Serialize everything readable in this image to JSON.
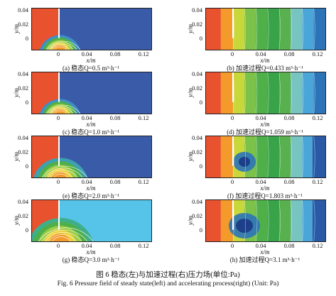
{
  "axes": {
    "ylabel": "y/m",
    "xlabel": "x/m",
    "yticks": [
      "0.04",
      "0.02",
      "0"
    ],
    "xticks": [
      "0",
      "0.04",
      "0.08",
      "0.12"
    ]
  },
  "panels": [
    {
      "id": "a",
      "caption": "(a) 稳态Q=0.5 m³·h⁻¹",
      "variant": "steady-low"
    },
    {
      "id": "b",
      "caption": "(b) 加速过程Q=0.433 m³·h⁻¹",
      "variant": "accel-bands"
    },
    {
      "id": "c",
      "caption": "(c) 稳态Q=1.0 m³·h⁻¹",
      "variant": "steady-low"
    },
    {
      "id": "d",
      "caption": "(d) 加速过程Q=1.059 m³·h⁻¹",
      "variant": "accel-bands"
    },
    {
      "id": "e",
      "caption": "(e) 稳态Q=2.0 m³·h⁻¹",
      "variant": "steady-mid"
    },
    {
      "id": "f",
      "caption": "(f) 加速过程Q=1.803 m³·h⁻¹",
      "variant": "accel-jet"
    },
    {
      "id": "g",
      "caption": "(g) 稳态Q=3.0 m³·h⁻¹",
      "variant": "steady-high"
    },
    {
      "id": "h",
      "caption": "(h) 加速过程Q=3.1 m³·h⁻¹",
      "variant": "accel-jet-strong"
    }
  ],
  "figure": {
    "title": "图 6   稳态(左)与加速过程(右)压力场(单位:Pa)",
    "subtitle": "Fig. 6   Pressure field of steady state(left) and accelerating process(right) (Unit: Pa)"
  },
  "colors": {
    "steady_bg": "#3a5ba8",
    "steady_high_bg": "#56c3e8",
    "band_colors": [
      "#e8522e",
      "#f39a2a",
      "#c8d83a",
      "#7cc24a",
      "#4fb04a",
      "#39a34a",
      "#58b14e",
      "#78c4c0",
      "#4aa6d8",
      "#2c74b8"
    ]
  }
}
